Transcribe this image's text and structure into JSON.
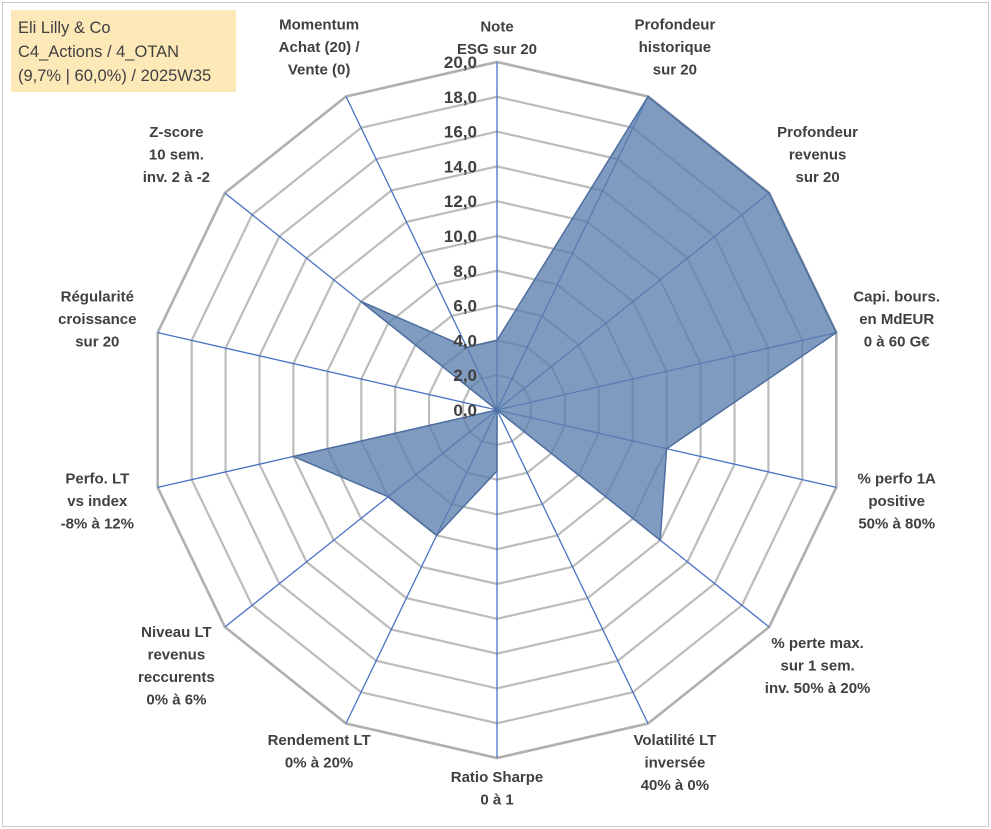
{
  "info": {
    "line1": "Eli Lilly & Co",
    "line2": "C4_Actions / 4_OTAN",
    "line3": "(9,7% | 60,0%) / 2025W35"
  },
  "chart_data": {
    "type": "radar",
    "range": [
      0,
      20
    ],
    "tick_step": 2,
    "tick_labels": [
      "0,0",
      "2,0",
      "4,0",
      "6,0",
      "8,0",
      "10,0",
      "12,0",
      "14,0",
      "16,0",
      "18,0",
      "20,0"
    ],
    "axes": [
      [
        "Note",
        "ESG sur 20"
      ],
      [
        "Profondeur",
        "historique",
        "sur 20"
      ],
      [
        "Profondeur",
        "revenus",
        "sur 20"
      ],
      [
        "Capi. bours.",
        "en MdEUR",
        "0 à 60 G€"
      ],
      [
        "% perfo 1A",
        "positive",
        "50% à 80%"
      ],
      [
        "% perte max.",
        "sur 1 sem.",
        "inv. 50% à 20%"
      ],
      [
        "Volatilité LT",
        "inversée",
        "40% à 0%"
      ],
      [
        "Ratio Sharpe",
        "0 à 1"
      ],
      [
        "Rendement LT",
        "0% à 20%"
      ],
      [
        "Niveau LT",
        "revenus",
        "reccurents",
        "0% à 6%"
      ],
      [
        "Perfo. LT",
        "vs index",
        "-8% à 12%"
      ],
      [
        "Régularité",
        "croissance",
        "sur 20"
      ],
      [
        "Z-score",
        "10 sem.",
        "inv. 2 à -2"
      ],
      [
        "Momentum",
        "Achat (20) /",
        "Vente (0)"
      ]
    ],
    "values": [
      4,
      20,
      20,
      20,
      10,
      12,
      0,
      3.5,
      8,
      8,
      12,
      0,
      10,
      4
    ],
    "fill_color": "#5b7fad",
    "fill_opacity": 0.78,
    "outline_color": "#4f6fa0",
    "spoke_color": "#4a72c4",
    "grid_color": "#bcbcbc",
    "outer_grid_color": "#b0b0b0",
    "grid": true
  }
}
